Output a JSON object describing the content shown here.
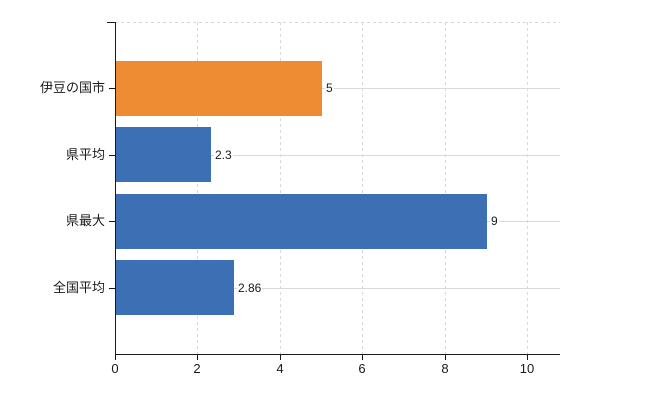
{
  "chart_data": {
    "type": "bar",
    "orientation": "horizontal",
    "title": "",
    "xlabel": "",
    "ylabel": "",
    "categories": [
      "伊豆の国市",
      "県平均",
      "県最大",
      "全国平均"
    ],
    "series": [
      {
        "name": "値",
        "values": [
          5,
          2.3,
          9,
          2.86
        ],
        "value_labels": [
          "5",
          "2.3",
          "9",
          "2.86"
        ],
        "bar_colors": [
          "#ed8c33",
          "#3d6fb4",
          "#3d6fb4",
          "#3d6fb4"
        ]
      }
    ],
    "x_ticks": [
      0,
      2,
      4,
      6,
      8,
      10
    ],
    "x_tick_labels": [
      "0",
      "2",
      "4",
      "6",
      "8",
      "10"
    ],
    "xlim": [
      0,
      10.8
    ],
    "grid": true,
    "legend": false
  },
  "colors": {
    "background": "#ffffff",
    "grid": "#d9d9d9",
    "axis": "#1a1a1a",
    "text": "#1a1a1a",
    "value_text": "#1a1a1a"
  }
}
